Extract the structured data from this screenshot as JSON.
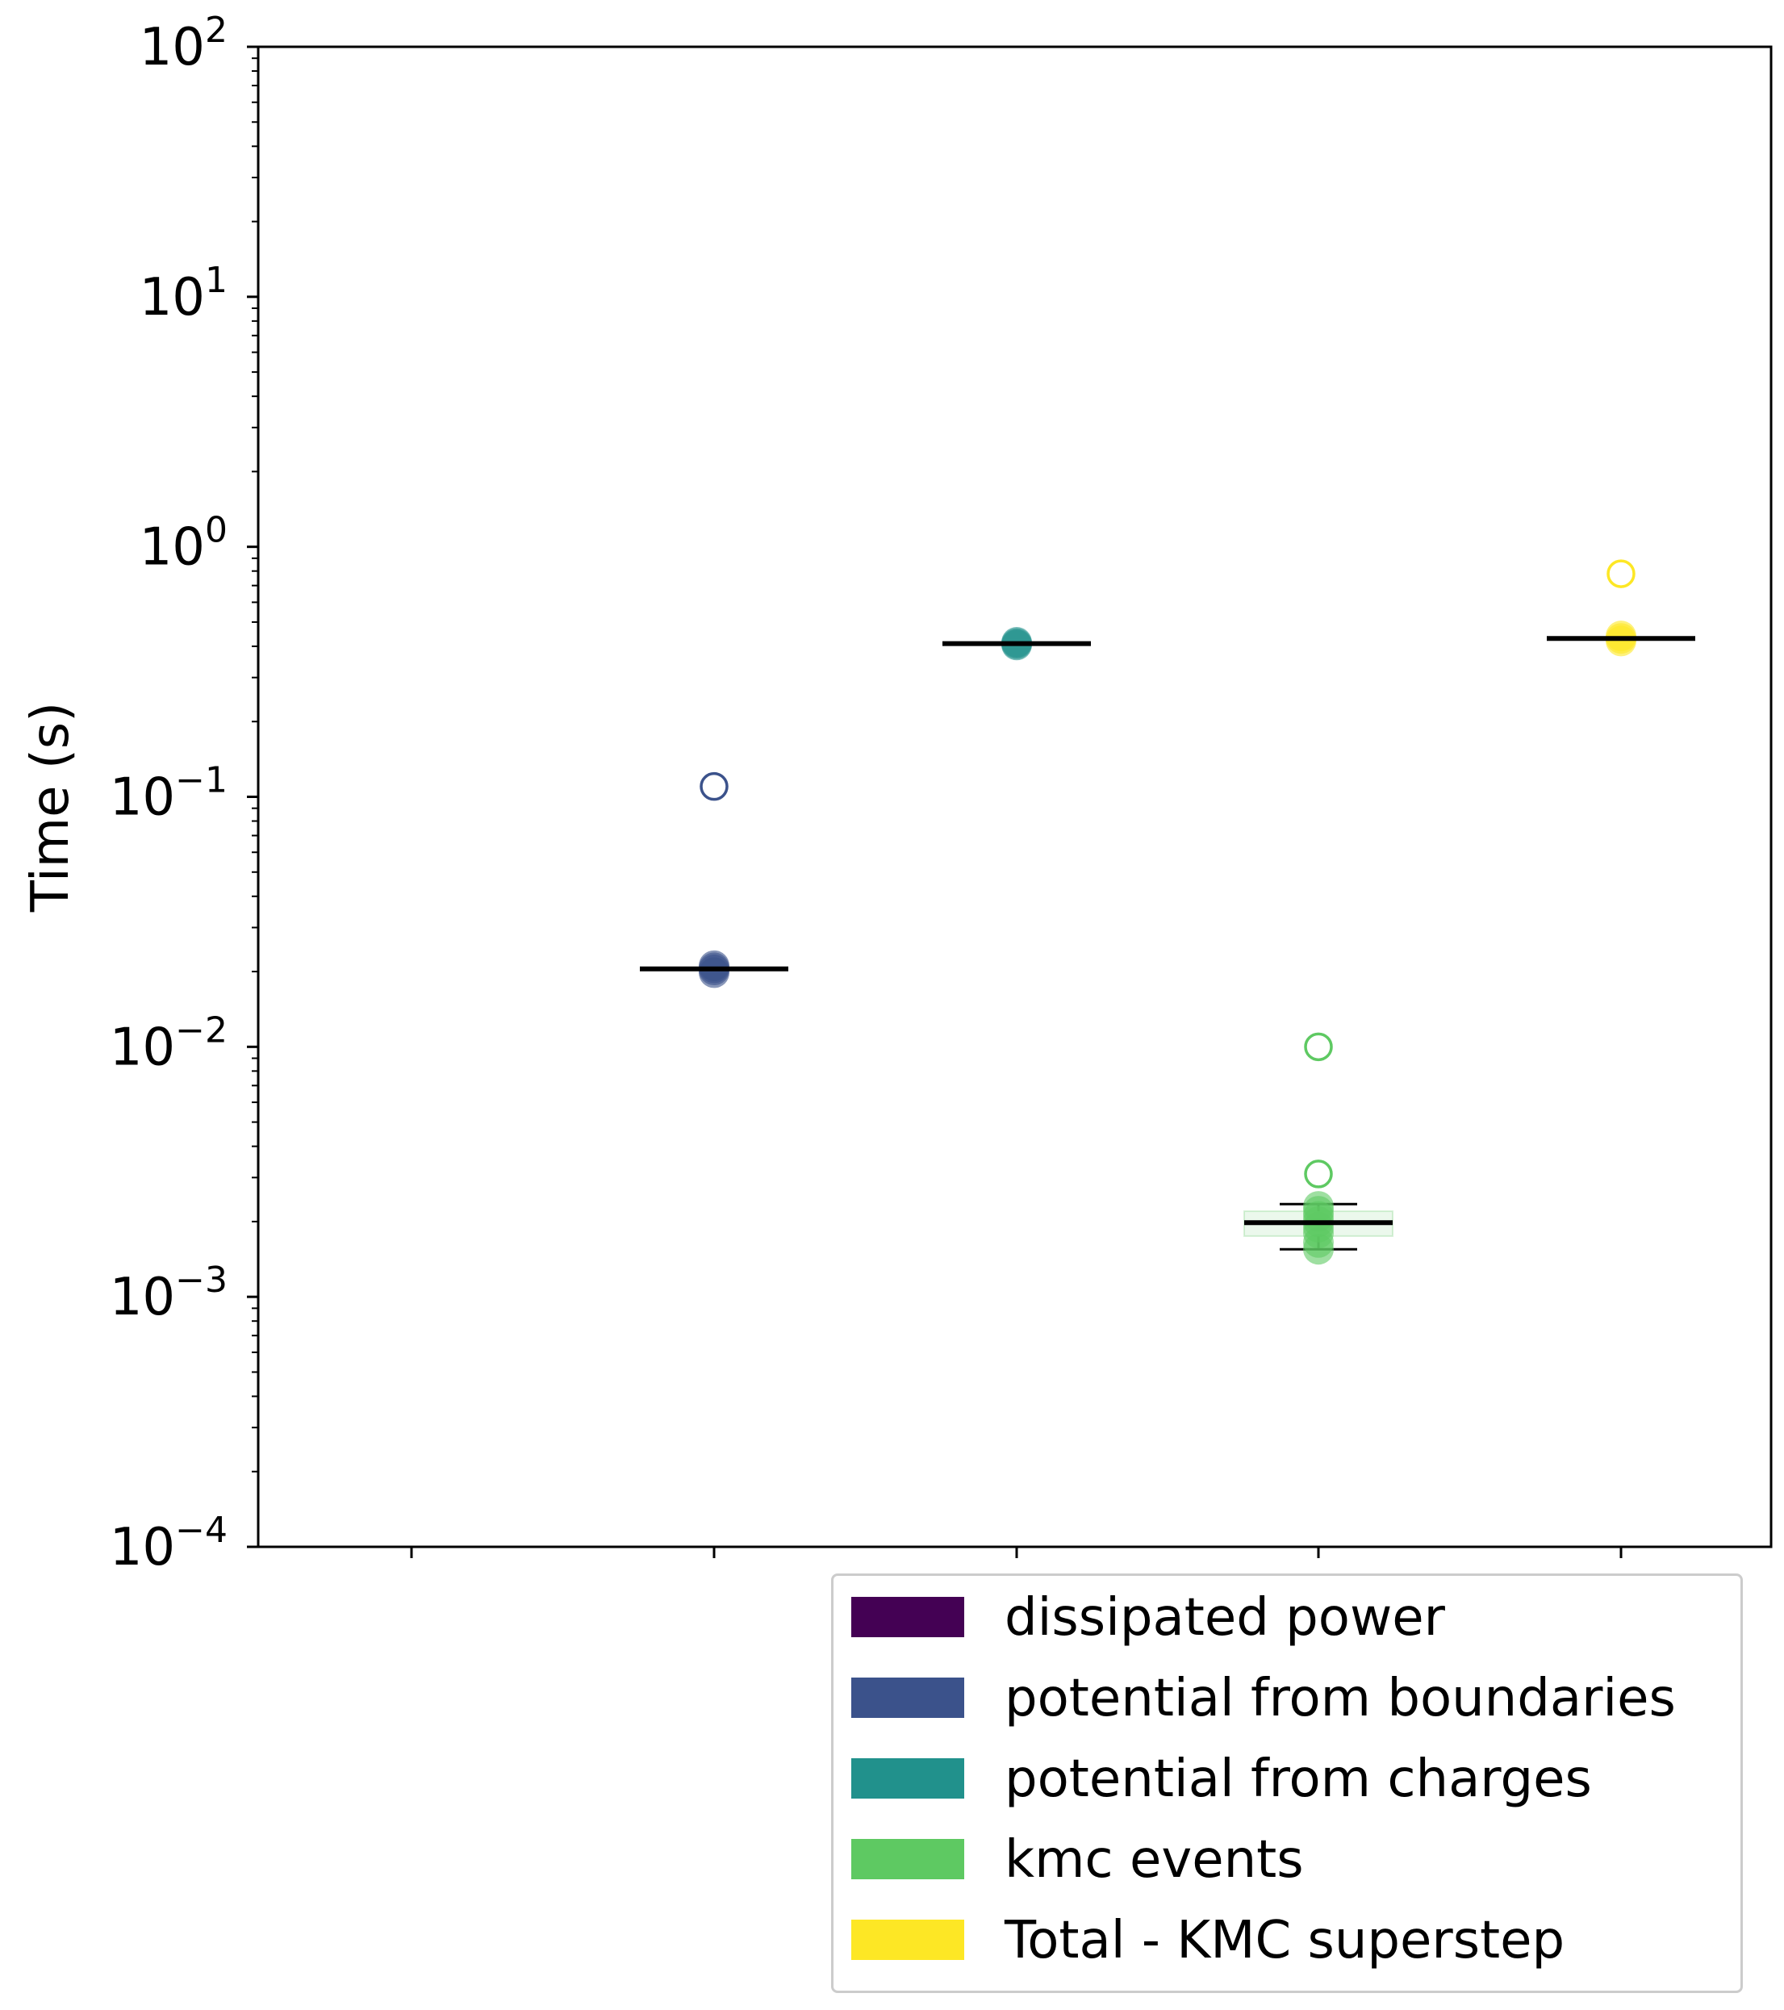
{
  "chart_data": {
    "type": "scatter",
    "title": "",
    "xlabel": "",
    "ylabel": "Time (s)",
    "yscale": "log",
    "ylim": [
      0.0001,
      100
    ],
    "y_ticks": [
      {
        "value": 100,
        "base": "10",
        "exp": "2"
      },
      {
        "value": 10,
        "base": "10",
        "exp": "1"
      },
      {
        "value": 1,
        "base": "10",
        "exp": "0"
      },
      {
        "value": 0.1,
        "base": "10",
        "exp": "−1"
      },
      {
        "value": 0.01,
        "base": "10",
        "exp": "−2"
      },
      {
        "value": 0.001,
        "base": "10",
        "exp": "−3"
      },
      {
        "value": 0.0001,
        "base": "10",
        "exp": "−4"
      }
    ],
    "grid": false,
    "legend_position": "below right",
    "series": [
      {
        "name": "dissipated power",
        "color": "#440154",
        "median": null,
        "points": [],
        "outliers": []
      },
      {
        "name": "potential from boundaries",
        "color": "#3b528b",
        "median": 0.0205,
        "points": [
          0.0198,
          0.0203,
          0.0207,
          0.0211
        ],
        "outliers": [
          0.11
        ]
      },
      {
        "name": "potential from charges",
        "color": "#21918c",
        "median": 0.41,
        "points": [
          0.405,
          0.41,
          0.415
        ],
        "outliers": []
      },
      {
        "name": "kmc events",
        "color": "#5ec962",
        "median": 0.00198,
        "q1": 0.00175,
        "q3": 0.0022,
        "whisker_low": 0.00155,
        "whisker_high": 0.00235,
        "points": [
          0.00155,
          0.00165,
          0.0018,
          0.0019,
          0.002,
          0.0021,
          0.0022,
          0.0023
        ],
        "outliers": [
          0.01,
          0.0031
        ]
      },
      {
        "name": "Total - KMC superstep",
        "color": "#fde725",
        "median": 0.43,
        "points": [
          0.42,
          0.43,
          0.44
        ],
        "outliers": [
          0.78
        ]
      }
    ]
  }
}
